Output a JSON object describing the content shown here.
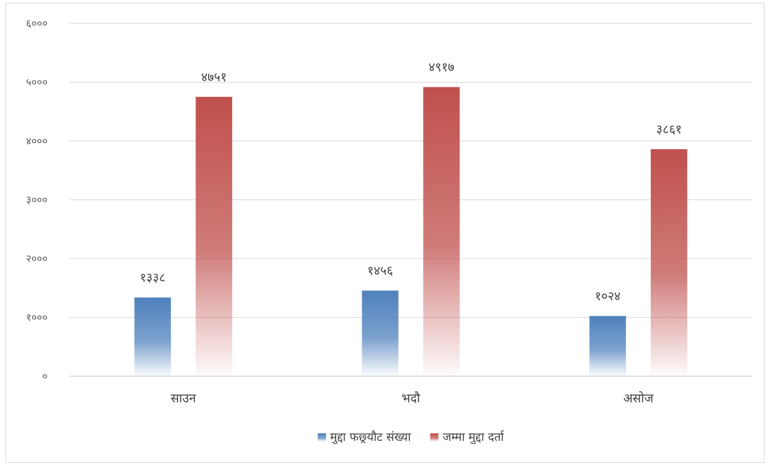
{
  "chart_data": {
    "type": "bar",
    "categories": [
      "साउन",
      "भदौ",
      "असोज"
    ],
    "series": [
      {
        "name": "मुद्दा फछ्र्यौट संख्या",
        "values": [
          1338,
          1456,
          1024
        ],
        "value_labels": [
          "१३३८",
          "१४५६",
          "१०२४"
        ],
        "color": "#4f81bd"
      },
      {
        "name": "जम्मा मुद्दा दर्ता",
        "values": [
          4751,
          4917,
          3861
        ],
        "value_labels": [
          "४७५१",
          "४९१७",
          "३८६१"
        ],
        "color": "#c0504d"
      }
    ],
    "ylim": [
      0,
      6000
    ],
    "yticks": [
      0,
      1000,
      2000,
      3000,
      4000,
      5000,
      6000
    ],
    "ytick_labels": [
      "०",
      "१०००",
      "२०००",
      "३०००",
      "४०००",
      "५०००",
      "६०००"
    ],
    "grid": true,
    "legend_position": "bottom",
    "title": "",
    "xlabel": "",
    "ylabel": ""
  }
}
